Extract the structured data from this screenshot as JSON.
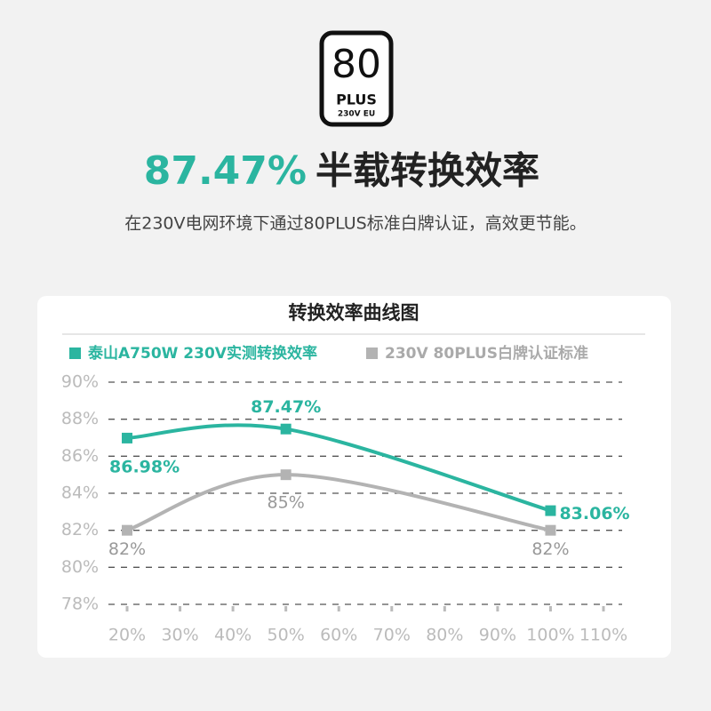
{
  "header": {
    "logo": {
      "number": "80",
      "brand": "PLUS",
      "region": "230V EU"
    },
    "headline_value": "87.47%",
    "headline_text": "半载转换效率",
    "subtitle": "在230V电网环境下通过80PLUS标准白牌认证，高效更节能。"
  },
  "chart_data": {
    "type": "line",
    "title": "转换效率曲线图",
    "x": [
      20,
      50,
      100
    ],
    "series": [
      {
        "name": "泰山A750W 230V实测转换效率",
        "color": "#2bb5a0",
        "values": [
          86.98,
          87.47,
          83.06
        ],
        "value_labels": [
          "86.98%",
          "87.47%",
          "83.06%"
        ]
      },
      {
        "name": "230V 80PLUS白牌认证标准",
        "color": "#b3b3b3",
        "values": [
          82,
          85,
          82
        ],
        "value_labels": [
          "82%",
          "85%",
          "82%"
        ]
      }
    ],
    "xlim": [
      20,
      110
    ],
    "xticks": [
      {
        "value": 20,
        "label": "20%"
      },
      {
        "value": 30,
        "label": "30%"
      },
      {
        "value": 40,
        "label": "40%"
      },
      {
        "value": 50,
        "label": "50%"
      },
      {
        "value": 60,
        "label": "60%"
      },
      {
        "value": 70,
        "label": "70%"
      },
      {
        "value": 80,
        "label": "80%"
      },
      {
        "value": 90,
        "label": "90%"
      },
      {
        "value": 100,
        "label": "100%"
      },
      {
        "value": 110,
        "label": "110%"
      }
    ],
    "ylim": [
      78,
      90
    ],
    "yticks": [
      {
        "value": 78,
        "label": "78%"
      },
      {
        "value": 80,
        "label": "80%"
      },
      {
        "value": 82,
        "label": "82%"
      },
      {
        "value": 84,
        "label": "84%"
      },
      {
        "value": 86,
        "label": "86%"
      },
      {
        "value": 88,
        "label": "88%"
      },
      {
        "value": 90,
        "label": "90%"
      }
    ],
    "grid": true
  }
}
